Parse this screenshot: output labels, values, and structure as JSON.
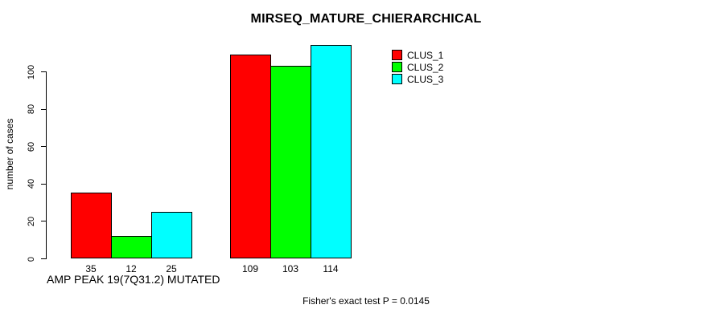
{
  "chart_data": {
    "type": "bar",
    "title": "MIRSEQ_MATURE_CHIERARCHICAL",
    "ylabel": "number of cases",
    "xlabel": "",
    "yticks": [
      0,
      20,
      40,
      60,
      80,
      100
    ],
    "ylim": [
      0,
      117
    ],
    "grid": false,
    "categories": [
      "AMP PEAK 19(7Q31.2) MUTATED",
      ""
    ],
    "series": [
      {
        "name": "CLUS_1",
        "color": "#ff0000",
        "values": [
          35,
          109
        ]
      },
      {
        "name": "CLUS_2",
        "color": "#00ff00",
        "values": [
          12,
          103
        ]
      },
      {
        "name": "CLUS_3",
        "color": "#00ffff",
        "values": [
          25,
          114
        ]
      }
    ],
    "bar_value_labels": [
      [
        35,
        12,
        25
      ],
      [
        109,
        103,
        114
      ]
    ],
    "legend_position": "top-right",
    "annotation": "Fisher's exact test P = 0.0145",
    "axis_color": "#000000",
    "background_color": "#ffffff"
  }
}
